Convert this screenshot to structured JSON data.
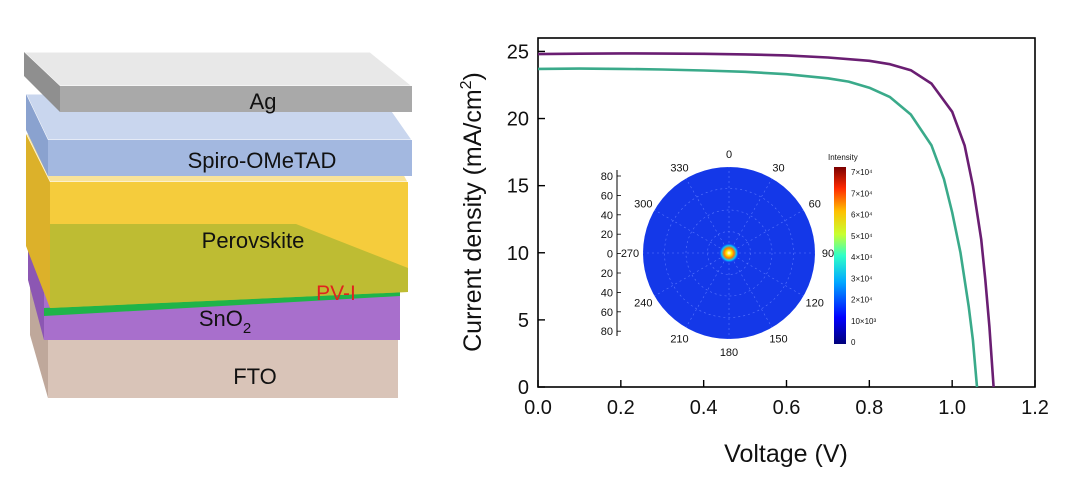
{
  "stack": {
    "layers": [
      {
        "key": "ag",
        "label": "Ag",
        "top": "#e8e8e8",
        "front": "#a9a9a9",
        "side": "#8f8f8f"
      },
      {
        "key": "spiro",
        "label": "Spiro-OMeTAD",
        "top": "#c9d6ee",
        "front": "#a3b8e0",
        "side": "#8aa2cf"
      },
      {
        "key": "perovskite",
        "label": "Perovskite",
        "top": "#f8e39a",
        "front": "#f5cc3c",
        "side": "#dcb12a"
      },
      {
        "key": "pvi",
        "label": "PV-I",
        "top": "#9fe0a0",
        "front": "#1fb449",
        "side": "#169a3b"
      },
      {
        "key": "sno2",
        "label": "SnO",
        "label_sub": "2",
        "top": "#d7b3e6",
        "front": "#a86fcc",
        "side": "#8c57b3"
      },
      {
        "key": "fto",
        "label": "FTO",
        "top": "#eee3dd",
        "front": "#d9c4b8",
        "side": "#bfa89b"
      }
    ]
  },
  "chart_data": {
    "type": "line",
    "xlabel": "Voltage (V)",
    "ylabel": "Current density (mA/cm",
    "ylabel_sup": "2",
    "ylabel_end": ")",
    "xlim": [
      0.0,
      1.2
    ],
    "ylim": [
      0,
      26
    ],
    "xticks": [
      "0.0",
      "0.2",
      "0.4",
      "0.6",
      "0.8",
      "1.0",
      "1.2"
    ],
    "yticks": [
      "0",
      "5",
      "10",
      "15",
      "20",
      "25"
    ],
    "grid": false,
    "series": [
      {
        "color": "#6a1e72",
        "points": [
          [
            0.0,
            24.8
          ],
          [
            0.1,
            24.83
          ],
          [
            0.2,
            24.85
          ],
          [
            0.3,
            24.84
          ],
          [
            0.4,
            24.82
          ],
          [
            0.5,
            24.78
          ],
          [
            0.6,
            24.7
          ],
          [
            0.7,
            24.55
          ],
          [
            0.8,
            24.3
          ],
          [
            0.85,
            24.05
          ],
          [
            0.9,
            23.6
          ],
          [
            0.95,
            22.6
          ],
          [
            1.0,
            20.5
          ],
          [
            1.03,
            18.0
          ],
          [
            1.05,
            15.0
          ],
          [
            1.07,
            11.0
          ],
          [
            1.08,
            8.0
          ],
          [
            1.09,
            4.5
          ],
          [
            1.1,
            0.0
          ]
        ]
      },
      {
        "color": "#3aaa8a",
        "points": [
          [
            0.0,
            23.7
          ],
          [
            0.1,
            23.72
          ],
          [
            0.2,
            23.7
          ],
          [
            0.3,
            23.65
          ],
          [
            0.4,
            23.58
          ],
          [
            0.5,
            23.48
          ],
          [
            0.6,
            23.3
          ],
          [
            0.7,
            23.0
          ],
          [
            0.75,
            22.75
          ],
          [
            0.8,
            22.3
          ],
          [
            0.85,
            21.6
          ],
          [
            0.9,
            20.3
          ],
          [
            0.95,
            18.0
          ],
          [
            0.98,
            15.5
          ],
          [
            1.0,
            13.0
          ],
          [
            1.02,
            10.0
          ],
          [
            1.04,
            6.0
          ],
          [
            1.05,
            3.5
          ],
          [
            1.06,
            0.0
          ]
        ]
      }
    ],
    "inset": {
      "type": "polar-heatmap",
      "angle_labels": [
        "0",
        "30",
        "60",
        "90",
        "120",
        "150",
        "180",
        "210",
        "240",
        "270",
        "300",
        "330"
      ],
      "radial_ticks": [
        "80",
        "60",
        "40",
        "20",
        "0",
        "20",
        "40",
        "60",
        "80"
      ],
      "colorbar_title": "Intensity",
      "colorbar_labels": [
        "7×10⁴",
        "7×10⁴",
        "6×10⁴",
        "5×10⁴",
        "4×10⁴",
        "3×10⁴",
        "2×10⁴",
        "10×10³",
        "0"
      ]
    }
  }
}
